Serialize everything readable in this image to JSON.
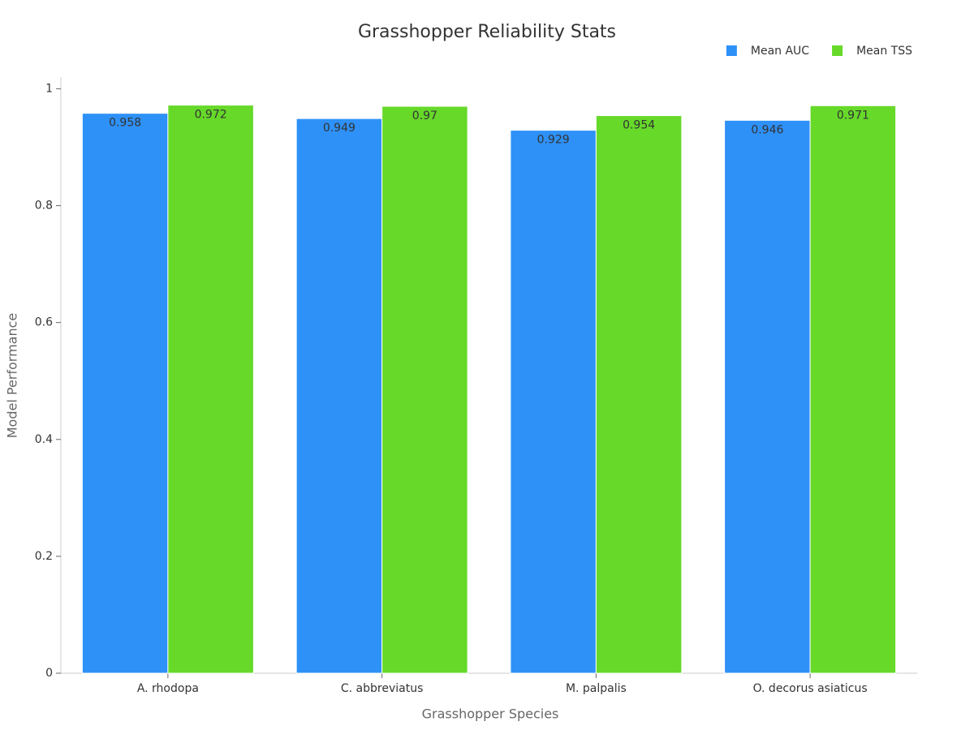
{
  "chart_data": {
    "type": "bar",
    "title": "Grasshopper Reliability Stats",
    "x_label": "Grasshopper Species",
    "y_label": "Model Performance",
    "categories": [
      "A. rhodopa",
      "C. abbreviatus",
      "M. palpalis",
      "O. decorus asiaticus"
    ],
    "series": [
      {
        "name": "Mean AUC",
        "color": "#2e91f8",
        "values": [
          0.958,
          0.949,
          0.929,
          0.946
        ]
      },
      {
        "name": "Mean TSS",
        "color": "#66d929",
        "values": [
          0.972,
          0.97,
          0.954,
          0.971
        ]
      }
    ],
    "ylim": [
      0,
      1.02
    ],
    "yticks": [
      0,
      0.2,
      0.4,
      0.6,
      0.8,
      1
    ],
    "grid": false,
    "legend": "top-right"
  }
}
